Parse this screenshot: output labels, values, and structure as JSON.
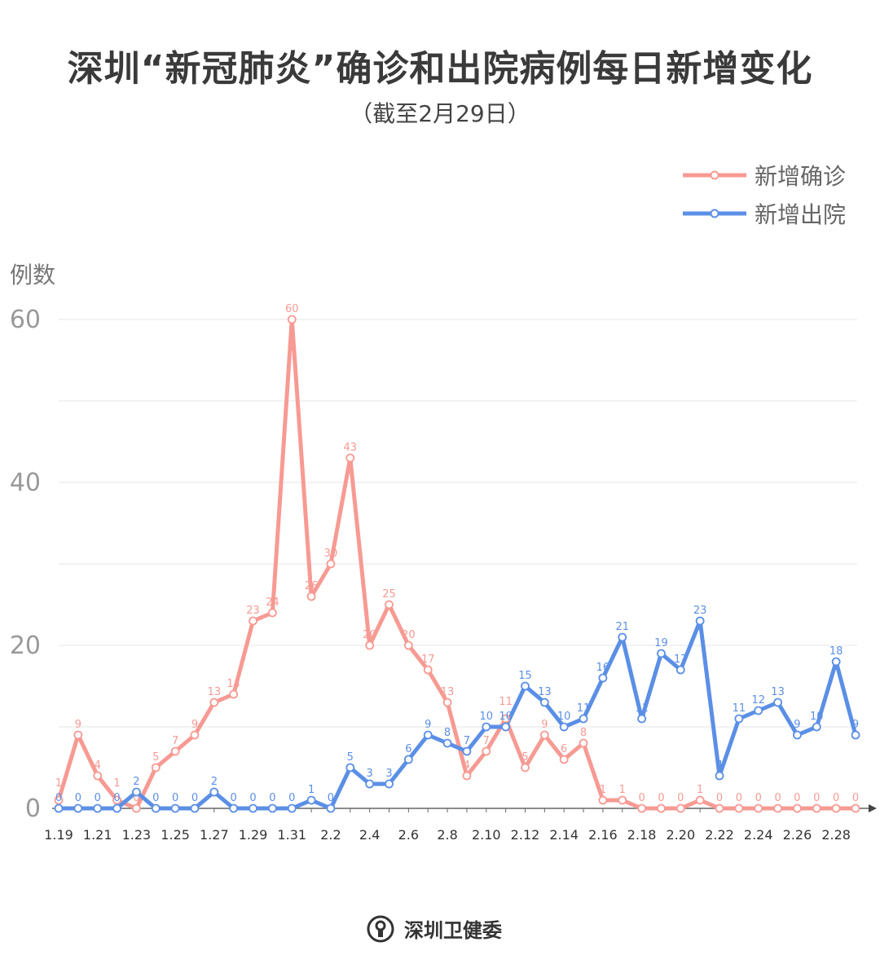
{
  "chart_data": {
    "type": "line",
    "title": "深圳“新冠肺炎”确诊和出院病例每日新增变化",
    "subtitle": "（截至2月29日）",
    "ylabel": "例数",
    "xlabel": "",
    "ylim": [
      0,
      60
    ],
    "yticks": [
      0,
      20,
      40,
      60
    ],
    "grid": true,
    "legend_position": "top-right",
    "x": [
      "1.19",
      "1.20",
      "1.21",
      "1.22",
      "1.23",
      "1.24",
      "1.25",
      "1.26",
      "1.27",
      "1.28",
      "1.29",
      "1.30",
      "1.31",
      "2.1",
      "2.2",
      "2.3",
      "2.4",
      "2.5",
      "2.6",
      "2.7",
      "2.8",
      "2.9",
      "2.10",
      "2.11",
      "2.12",
      "2.13",
      "2.14",
      "2.15",
      "2.16",
      "2.17",
      "2.18",
      "2.19",
      "2.20",
      "2.21",
      "2.22",
      "2.23",
      "2.24",
      "2.25",
      "2.26",
      "2.27",
      "2.28",
      "2.29"
    ],
    "xtick_labels": [
      "1.19",
      "1.21",
      "1.23",
      "1.25",
      "1.27",
      "1.29",
      "1.31",
      "2.2",
      "2.4",
      "2.6",
      "2.8",
      "2.10",
      "2.12",
      "2.14",
      "2.16",
      "2.18",
      "2.20",
      "2.22",
      "2.24",
      "2.26",
      "2.28"
    ],
    "series": [
      {
        "name": "新增确诊",
        "color": "#f79a93",
        "values": [
          1,
          9,
          4,
          1,
          0,
          5,
          7,
          9,
          13,
          14,
          23,
          24,
          60,
          26,
          30,
          43,
          20,
          25,
          20,
          17,
          13,
          4,
          7,
          11,
          5,
          9,
          6,
          8,
          1,
          1,
          0,
          0,
          0,
          1,
          0,
          0,
          0,
          0,
          0,
          0,
          0,
          0
        ]
      },
      {
        "name": "新增出院",
        "color": "#5b8fe6",
        "values": [
          0,
          0,
          0,
          0,
          2,
          0,
          0,
          0,
          2,
          0,
          0,
          0,
          0,
          1,
          0,
          5,
          3,
          3,
          6,
          9,
          8,
          7,
          10,
          10,
          15,
          13,
          10,
          11,
          16,
          21,
          11,
          19,
          17,
          23,
          4,
          11,
          12,
          13,
          9,
          10,
          18,
          9
        ]
      }
    ]
  },
  "footer": {
    "source": "深圳卫健委"
  }
}
